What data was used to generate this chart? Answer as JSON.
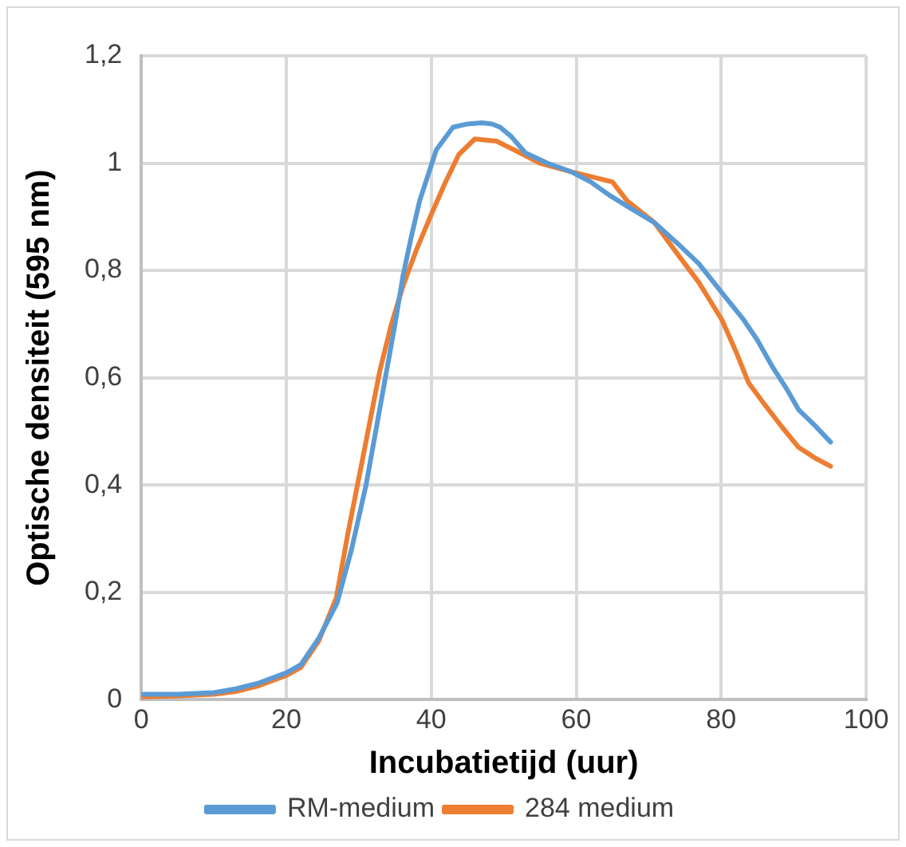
{
  "chart_data": {
    "type": "line",
    "xlabel": "Incubatietijd (uur)",
    "ylabel": "Optische densiteit (595 nm)",
    "xlim": [
      0,
      100
    ],
    "xticks": [
      0,
      20,
      40,
      60,
      80,
      100
    ],
    "ylim": [
      0,
      1.2
    ],
    "yticks": [
      {
        "value": 0,
        "label": "0"
      },
      {
        "value": 0.2,
        "label": "0,2"
      },
      {
        "value": 0.4,
        "label": "0,4"
      },
      {
        "value": 0.6,
        "label": "0,6"
      },
      {
        "value": 0.8,
        "label": "0,8"
      },
      {
        "value": 1,
        "label": "1"
      },
      {
        "value": 1.2,
        "label": "1,2"
      }
    ],
    "grid": true,
    "legend": "bottom",
    "marker": "none",
    "line_style": "solid",
    "series": [
      {
        "name": "RM-medium",
        "color": "#5b9bd5",
        "x": [
          0,
          5,
          10,
          13,
          16,
          20,
          22,
          24.5,
          27,
          29,
          31,
          33,
          35,
          36.1,
          37.2,
          38.4,
          40.7,
          43,
          45,
          47,
          48.4,
          49.5,
          51,
          53,
          56,
          59.3,
          62,
          64.6,
          67,
          70.8,
          74,
          76.9,
          80,
          83.1,
          85,
          87,
          89,
          90.7,
          93,
          95.1
        ],
        "values": [
          0.01,
          0.01,
          0.013,
          0.02,
          0.03,
          0.05,
          0.065,
          0.115,
          0.18,
          0.28,
          0.4,
          0.55,
          0.7,
          0.79,
          0.86,
          0.93,
          1.025,
          1.067,
          1.073,
          1.075,
          1.073,
          1.067,
          1.05,
          1.019,
          1.0,
          0.984,
          0.965,
          0.94,
          0.92,
          0.889,
          0.85,
          0.813,
          0.76,
          0.708,
          0.67,
          0.622,
          0.58,
          0.54,
          0.51,
          0.48
        ]
      },
      {
        "name": "284 medium",
        "color": "#ed7d31",
        "x": [
          0,
          5,
          10,
          13,
          16,
          20,
          22,
          24.5,
          26.9,
          28.5,
          30.6,
          32.9,
          34.5,
          36.1,
          38,
          39.8,
          41.8,
          43.8,
          46,
          49,
          51.4,
          55,
          59.3,
          62,
          65,
          67,
          70.8,
          74,
          76.9,
          80.1,
          82,
          83.8,
          86,
          88.4,
          90.7,
          93,
          95.1
        ],
        "values": [
          0.005,
          0.007,
          0.01,
          0.015,
          0.025,
          0.045,
          0.06,
          0.11,
          0.19,
          0.31,
          0.454,
          0.613,
          0.7,
          0.771,
          0.84,
          0.898,
          0.96,
          1.016,
          1.045,
          1.041,
          1.025,
          1.0,
          0.984,
          0.975,
          0.965,
          0.93,
          0.889,
          0.83,
          0.778,
          0.708,
          0.65,
          0.59,
          0.55,
          0.508,
          0.47,
          0.45,
          0.435
        ]
      }
    ]
  }
}
